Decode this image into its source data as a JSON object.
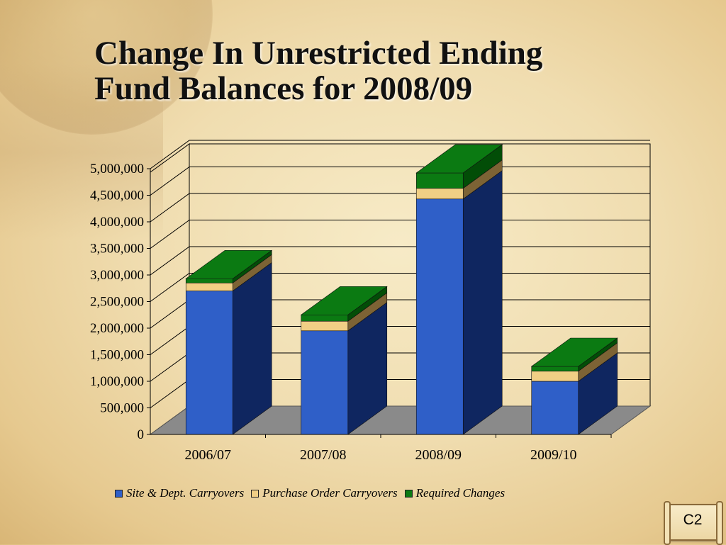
{
  "slide": {
    "title_line1": "Change In Unrestricted Ending",
    "title_line2": "Fund Balances for 2008/09",
    "badge": "C2"
  },
  "colors": {
    "site_dept": "#2f5fc8",
    "site_dept_side": "#0f2660",
    "purchase_order": "#f1cf85",
    "purchase_order_side": "#7d6335",
    "required_changes": "#0b7a12",
    "required_changes_side": "#024d07",
    "floor": "#8a8a8a"
  },
  "chart_data": {
    "type": "bar",
    "stacked": true,
    "three_d": true,
    "title": "Change In Unrestricted Ending Fund Balances for 2008/09",
    "categories": [
      "2006/07",
      "2007/08",
      "2008/09",
      "2009/10"
    ],
    "series": [
      {
        "name": "Site &  Dept. Carryovers",
        "values": [
          2700000,
          1950000,
          4430000,
          1000000
        ]
      },
      {
        "name": "Purchase Order Carryovers",
        "values": [
          150000,
          180000,
          200000,
          190000
        ]
      },
      {
        "name": "Required Changes",
        "values": [
          80000,
          120000,
          290000,
          90000
        ]
      }
    ],
    "ylim": [
      0,
      5000000
    ],
    "y_ticks": [
      "0",
      "500,000",
      "1,000,000",
      "1,500,000",
      "2,000,000",
      "2,500,000",
      "3,000,000",
      "3,500,000",
      "4,000,000",
      "4,500,000",
      "5,000,000"
    ],
    "xlabel": "",
    "ylabel": "",
    "grid": true,
    "legend_position": "bottom"
  }
}
